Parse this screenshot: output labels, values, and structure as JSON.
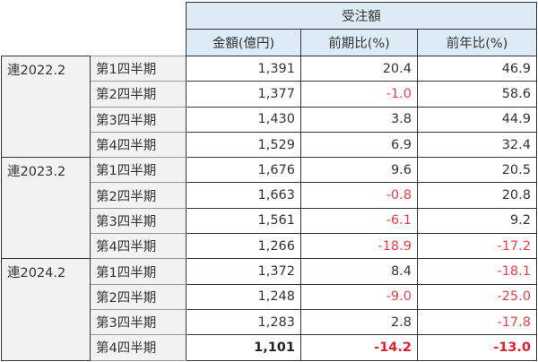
{
  "header": {
    "group": "受注額",
    "columns": [
      "金額(億円)",
      "前期比(%)",
      "前年比(%)"
    ]
  },
  "groups": [
    {
      "year": "連2022.2",
      "rows": [
        {
          "q": "第1四半期",
          "amount": "1,391",
          "qoq": "20.4",
          "yoy": "46.9"
        },
        {
          "q": "第2四半期",
          "amount": "1,377",
          "qoq": "-1.0",
          "yoy": "58.6"
        },
        {
          "q": "第3四半期",
          "amount": "1,430",
          "qoq": "3.8",
          "yoy": "44.9"
        },
        {
          "q": "第4四半期",
          "amount": "1,529",
          "qoq": "6.9",
          "yoy": "32.4"
        }
      ]
    },
    {
      "year": "連2023.2",
      "rows": [
        {
          "q": "第1四半期",
          "amount": "1,676",
          "qoq": "9.6",
          "yoy": "20.5"
        },
        {
          "q": "第2四半期",
          "amount": "1,663",
          "qoq": "-0.8",
          "yoy": "20.8"
        },
        {
          "q": "第3四半期",
          "amount": "1,561",
          "qoq": "-6.1",
          "yoy": "9.2"
        },
        {
          "q": "第4四半期",
          "amount": "1,266",
          "qoq": "-18.9",
          "yoy": "-17.2"
        }
      ]
    },
    {
      "year": "連2024.2",
      "rows": [
        {
          "q": "第1四半期",
          "amount": "1,372",
          "qoq": "8.4",
          "yoy": "-18.1"
        },
        {
          "q": "第2四半期",
          "amount": "1,248",
          "qoq": "-9.0",
          "yoy": "-25.0"
        },
        {
          "q": "第3四半期",
          "amount": "1,283",
          "qoq": "2.8",
          "yoy": "-17.8"
        },
        {
          "q": "第4四半期",
          "amount": "1,101",
          "qoq": "-14.2",
          "yoy": "-13.0"
        }
      ]
    }
  ],
  "colors": {
    "header_bg": "#ddebf7",
    "label_bg": "#f2f2f2",
    "negative": "#e8424a"
  }
}
